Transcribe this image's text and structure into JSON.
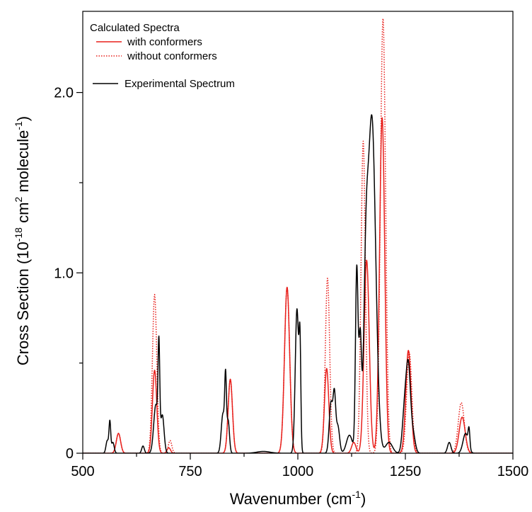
{
  "chart_data": {
    "type": "line",
    "xlim": [
      500,
      1500
    ],
    "ylim": [
      0,
      2.45
    ],
    "x_major_ticks": [
      500,
      750,
      1000,
      1250,
      1500
    ],
    "x_minor_ticks": [
      625,
      875,
      1125,
      1375
    ],
    "y_major_ticks": [
      0,
      1.0,
      2.0
    ],
    "y_minor_ticks": [
      0.5,
      1.5
    ],
    "x_tick_labels": [
      "500",
      "750",
      "1000",
      "1250",
      "1500"
    ],
    "y_tick_labels": [
      "0",
      "1.0",
      "2.0"
    ],
    "xlabel": {
      "text": "Wavenumber (cm",
      "sup": "-1",
      "tail": ")"
    },
    "ylabel": {
      "p1": "Cross Section (10",
      "s1": "-18",
      "p2": " cm",
      "s2": "2",
      "p3": " molecule",
      "s3": "-1",
      "p4": ")"
    },
    "grid": false,
    "legend": {
      "position": "top-left",
      "group_title": "Calculated Spectra",
      "entries": [
        {
          "label": "with conformers",
          "color": "#e8201c",
          "dash": "solid"
        },
        {
          "label": "without conformers",
          "color": "#e8201c",
          "dash": "dotted"
        },
        {
          "label": "Experimental Spectrum",
          "color": "#000000",
          "dash": "solid"
        }
      ]
    },
    "series": [
      {
        "name": "with conformers",
        "color": "#e8201c",
        "dash": "solid",
        "peaks": [
          {
            "x": 583,
            "y": 0.11,
            "w": 5
          },
          {
            "x": 667,
            "y": 0.46,
            "w": 5
          },
          {
            "x": 700,
            "y": 0.03,
            "w": 4
          },
          {
            "x": 843,
            "y": 0.41,
            "w": 5
          },
          {
            "x": 975,
            "y": 0.92,
            "w": 6
          },
          {
            "x": 1067,
            "y": 0.47,
            "w": 5
          },
          {
            "x": 1130,
            "y": 0.06,
            "w": 5
          },
          {
            "x": 1160,
            "y": 1.07,
            "w": 6
          },
          {
            "x": 1196,
            "y": 1.86,
            "w": 6
          },
          {
            "x": 1257,
            "y": 0.57,
            "w": 6
          },
          {
            "x": 1382,
            "y": 0.2,
            "w": 7
          }
        ]
      },
      {
        "name": "without conformers",
        "color": "#e8201c",
        "dash": "dotted",
        "peaks": [
          {
            "x": 583,
            "y": 0.11,
            "w": 5
          },
          {
            "x": 667,
            "y": 0.88,
            "w": 5
          },
          {
            "x": 703,
            "y": 0.07,
            "w": 4
          },
          {
            "x": 843,
            "y": 0.41,
            "w": 5
          },
          {
            "x": 975,
            "y": 0.92,
            "w": 6
          },
          {
            "x": 1069,
            "y": 0.97,
            "w": 5
          },
          {
            "x": 1152,
            "y": 1.73,
            "w": 5
          },
          {
            "x": 1198,
            "y": 2.41,
            "w": 6
          },
          {
            "x": 1259,
            "y": 0.56,
            "w": 6
          },
          {
            "x": 1380,
            "y": 0.28,
            "w": 7
          }
        ]
      },
      {
        "name": "Experimental Spectrum",
        "color": "#000000",
        "dash": "solid",
        "peaks": [
          {
            "x": 557,
            "y": 0.07,
            "w": 3
          },
          {
            "x": 563,
            "y": 0.17,
            "w": 2
          },
          {
            "x": 570,
            "y": 0.06,
            "w": 3
          },
          {
            "x": 640,
            "y": 0.04,
            "w": 3
          },
          {
            "x": 670,
            "y": 0.27,
            "w": 5
          },
          {
            "x": 677,
            "y": 0.52,
            "w": 2
          },
          {
            "x": 685,
            "y": 0.21,
            "w": 4
          },
          {
            "x": 826,
            "y": 0.22,
            "w": 4
          },
          {
            "x": 832,
            "y": 0.37,
            "w": 2
          },
          {
            "x": 838,
            "y": 0.18,
            "w": 3
          },
          {
            "x": 920,
            "y": 0.01,
            "w": 15
          },
          {
            "x": 998,
            "y": 0.8,
            "w": 4
          },
          {
            "x": 1005,
            "y": 0.53,
            "w": 2
          },
          {
            "x": 1077,
            "y": 0.28,
            "w": 4
          },
          {
            "x": 1085,
            "y": 0.3,
            "w": 3
          },
          {
            "x": 1093,
            "y": 0.15,
            "w": 4
          },
          {
            "x": 1120,
            "y": 0.1,
            "w": 7
          },
          {
            "x": 1137,
            "y": 1.02,
            "w": 3
          },
          {
            "x": 1145,
            "y": 0.62,
            "w": 3
          },
          {
            "x": 1158,
            "y": 0.75,
            "w": 5
          },
          {
            "x": 1172,
            "y": 1.86,
            "w": 9
          },
          {
            "x": 1212,
            "y": 0.06,
            "w": 8
          },
          {
            "x": 1248,
            "y": 0.23,
            "w": 5
          },
          {
            "x": 1257,
            "y": 0.46,
            "w": 5
          },
          {
            "x": 1268,
            "y": 0.1,
            "w": 5
          },
          {
            "x": 1352,
            "y": 0.06,
            "w": 4
          },
          {
            "x": 1390,
            "y": 0.11,
            "w": 6
          },
          {
            "x": 1398,
            "y": 0.1,
            "w": 2
          }
        ]
      }
    ]
  }
}
